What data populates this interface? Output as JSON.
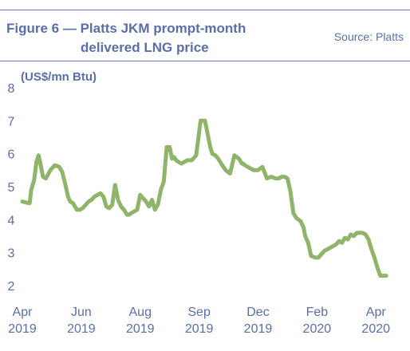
{
  "chart_data": {
    "type": "line",
    "title_line1": "Figure 6 — Platts JKM prompt-month",
    "title_line2": "delivered LNG price",
    "source": "Source: Platts",
    "ylabel": "(US$/mn Btu)",
    "xlabel": "",
    "ylim": [
      2,
      8
    ],
    "yticks": [
      2,
      3,
      4,
      5,
      6,
      7,
      8
    ],
    "xlim": [
      0,
      12.4
    ],
    "xtick_positions": [
      0,
      2,
      4,
      6,
      8,
      10,
      12
    ],
    "xtick_labels": [
      [
        "Apr",
        "2019"
      ],
      [
        "Jun",
        "2019"
      ],
      [
        "Aug",
        "2019"
      ],
      [
        "Sep",
        "2019"
      ],
      [
        "Dec",
        "2019"
      ],
      [
        "Feb",
        "2020"
      ],
      [
        "Apr",
        "2020"
      ]
    ],
    "line_color": "#8fb46a",
    "grid": false,
    "series": [
      {
        "x": [
          0.0,
          0.12,
          0.25,
          0.3,
          0.4,
          0.48,
          0.55,
          0.6,
          0.7,
          0.8,
          0.95,
          1.1,
          1.25,
          1.35,
          1.45,
          1.55,
          1.62,
          1.72,
          1.85,
          1.95,
          2.05,
          2.15,
          2.25,
          2.35,
          2.45,
          2.55,
          2.65,
          2.75,
          2.85,
          2.95,
          3.05,
          3.15,
          3.25,
          3.35,
          3.45,
          3.55,
          3.62,
          3.7,
          3.8,
          3.9,
          4.0,
          4.1,
          4.2,
          4.3,
          4.4,
          4.5,
          4.6,
          4.7,
          4.8,
          4.9,
          5.0,
          5.08,
          5.15,
          5.22,
          5.3,
          5.4,
          5.5,
          5.6,
          5.75,
          5.9,
          6.05,
          6.2,
          6.3,
          6.38,
          6.45,
          6.55,
          6.65,
          6.75,
          6.9,
          7.05,
          7.2,
          7.35,
          7.45,
          7.5,
          7.55,
          7.65,
          7.75,
          7.85,
          8.0,
          8.15,
          8.3,
          8.45,
          8.6,
          8.7,
          8.8,
          8.9,
          9.0,
          9.1,
          9.2,
          9.3,
          9.45,
          9.55,
          9.6,
          9.7,
          9.8,
          9.95,
          10.05,
          10.15,
          10.25,
          10.35,
          10.45,
          10.55,
          10.65,
          10.75,
          10.85,
          10.95,
          11.05,
          11.15,
          11.25,
          11.35,
          11.45,
          11.55,
          11.65,
          11.75,
          11.85,
          11.95,
          12.05,
          12.15,
          12.25,
          12.35
        ],
        "y": [
          4.55,
          4.52,
          4.5,
          4.9,
          5.2,
          5.75,
          5.95,
          5.75,
          5.3,
          5.25,
          5.5,
          5.65,
          5.6,
          5.45,
          5.1,
          4.7,
          4.55,
          4.5,
          4.3,
          4.3,
          4.35,
          4.45,
          4.55,
          4.6,
          4.7,
          4.75,
          4.8,
          4.7,
          4.4,
          4.35,
          4.45,
          5.05,
          4.6,
          4.4,
          4.3,
          4.15,
          4.15,
          4.2,
          4.25,
          4.3,
          4.75,
          4.65,
          4.55,
          4.4,
          4.6,
          4.3,
          4.45,
          4.9,
          5.15,
          6.2,
          6.2,
          5.85,
          5.9,
          5.8,
          5.75,
          5.7,
          5.75,
          5.8,
          5.8,
          5.95,
          7.0,
          7.0,
          6.55,
          6.2,
          6.0,
          5.95,
          5.85,
          5.7,
          5.5,
          5.4,
          5.95,
          5.85,
          5.7,
          5.7,
          5.65,
          5.6,
          5.55,
          5.5,
          5.5,
          5.6,
          5.25,
          5.3,
          5.25,
          5.25,
          5.3,
          5.3,
          5.25,
          4.85,
          4.2,
          4.05,
          3.95,
          3.75,
          3.5,
          3.3,
          2.9,
          2.85,
          2.85,
          2.95,
          3.05,
          3.1,
          3.15,
          3.2,
          3.25,
          3.35,
          3.3,
          3.45,
          3.4,
          3.55,
          3.5,
          3.6,
          3.6,
          3.6,
          3.55,
          3.4,
          3.1,
          2.85,
          2.55,
          2.3,
          2.3,
          2.3
        ]
      }
    ]
  }
}
